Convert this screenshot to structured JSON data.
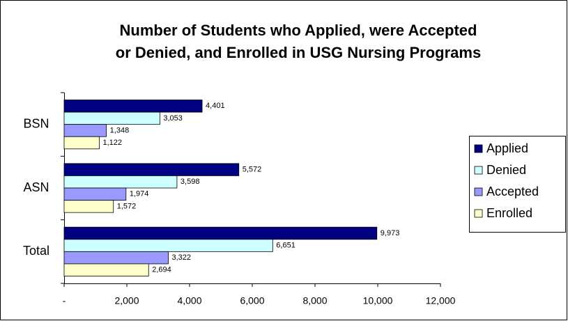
{
  "chart_data": {
    "type": "barh",
    "title": [
      "Number of Students who Applied, were Accepted",
      "or Denied, and Enrolled in USG Nursing Programs"
    ],
    "categories": [
      "BSN",
      "ASN",
      "Total"
    ],
    "series": [
      {
        "name": "Applied",
        "color": "#000080",
        "values": [
          4401,
          5572,
          9973
        ],
        "value_labels": [
          "4,401",
          "5,572",
          "9,973"
        ]
      },
      {
        "name": "Denied",
        "color": "#ccffff",
        "values": [
          3053,
          3598,
          6651
        ],
        "value_labels": [
          "3,053",
          "3,598",
          "6,651"
        ]
      },
      {
        "name": "Accepted",
        "color": "#9999ff",
        "values": [
          1348,
          1974,
          3322
        ],
        "value_labels": [
          "1,348",
          "1,974",
          "3,322"
        ]
      },
      {
        "name": "Enrolled",
        "color": "#ffffcc",
        "values": [
          1122,
          1572,
          2694
        ],
        "value_labels": [
          "1,122",
          "1,572",
          "2,694"
        ]
      }
    ],
    "xlim": [
      0,
      12000
    ],
    "xticks": [
      {
        "value": 0,
        "label": "-"
      },
      {
        "value": 2000,
        "label": "2,000"
      },
      {
        "value": 4000,
        "label": "4,000"
      },
      {
        "value": 6000,
        "label": "6,000"
      },
      {
        "value": 8000,
        "label": "8,000"
      },
      {
        "value": 10000,
        "label": "10,000"
      },
      {
        "value": 12000,
        "label": "12,000"
      }
    ],
    "legend": "right"
  }
}
